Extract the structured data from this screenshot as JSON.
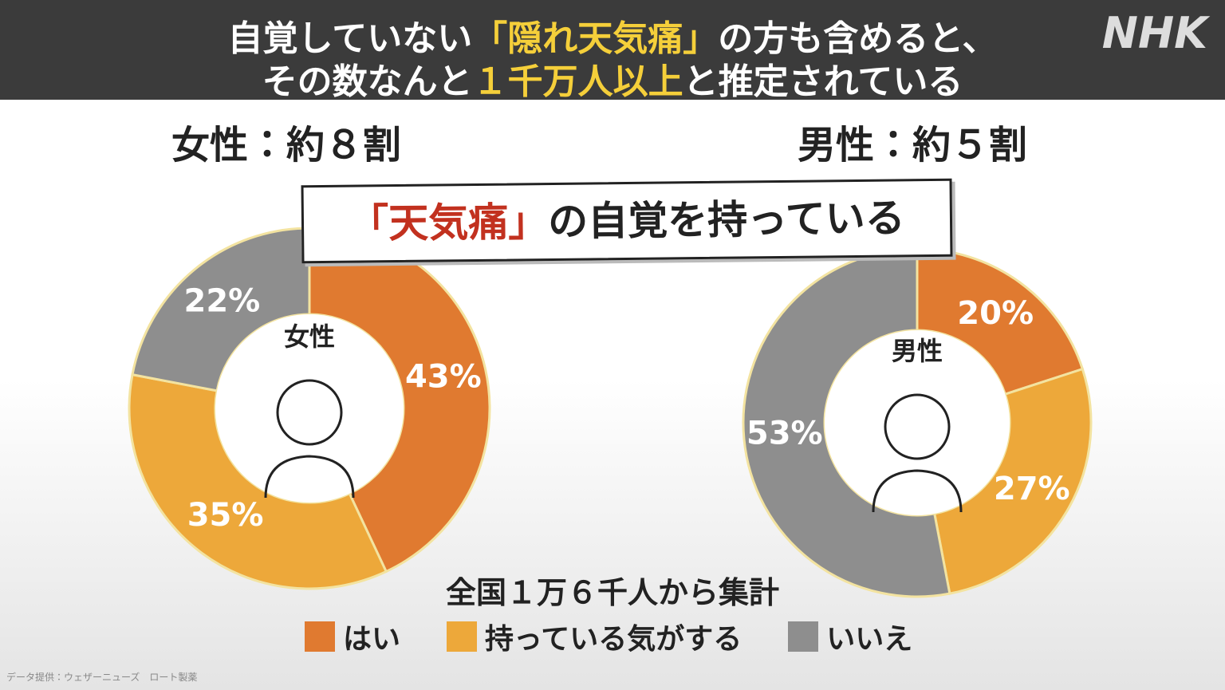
{
  "header": {
    "line1": [
      "自覚していない",
      "「隠れ天気痛」",
      "の方も含めると、"
    ],
    "line2": [
      "その数なんと",
      "１千万人以上",
      "と推定されている"
    ],
    "logo": "NHK"
  },
  "banner": [
    "「天気痛」",
    "の自覚を持っている"
  ],
  "chart_data": [
    {
      "type": "pie",
      "title": "女性：約８割",
      "center_label": "女性",
      "categories": [
        "はい",
        "持っている気がする",
        "いいえ"
      ],
      "values": [
        43,
        35,
        22
      ],
      "value_labels": [
        "43%",
        "35%",
        "22%"
      ],
      "colors": [
        "#e07a30",
        "#eda83a",
        "#8e8e8e"
      ]
    },
    {
      "type": "pie",
      "title": "男性：約５割",
      "center_label": "男性",
      "categories": [
        "はい",
        "持っている気がする",
        "いいえ"
      ],
      "values": [
        20,
        27,
        53
      ],
      "value_labels": [
        "20%",
        "27%",
        "53%"
      ],
      "colors": [
        "#e07a30",
        "#eda83a",
        "#8e8e8e"
      ]
    }
  ],
  "note": "全国１万６千人から集計",
  "source": "データ提供：ウェザーニューズ　ロート製薬"
}
